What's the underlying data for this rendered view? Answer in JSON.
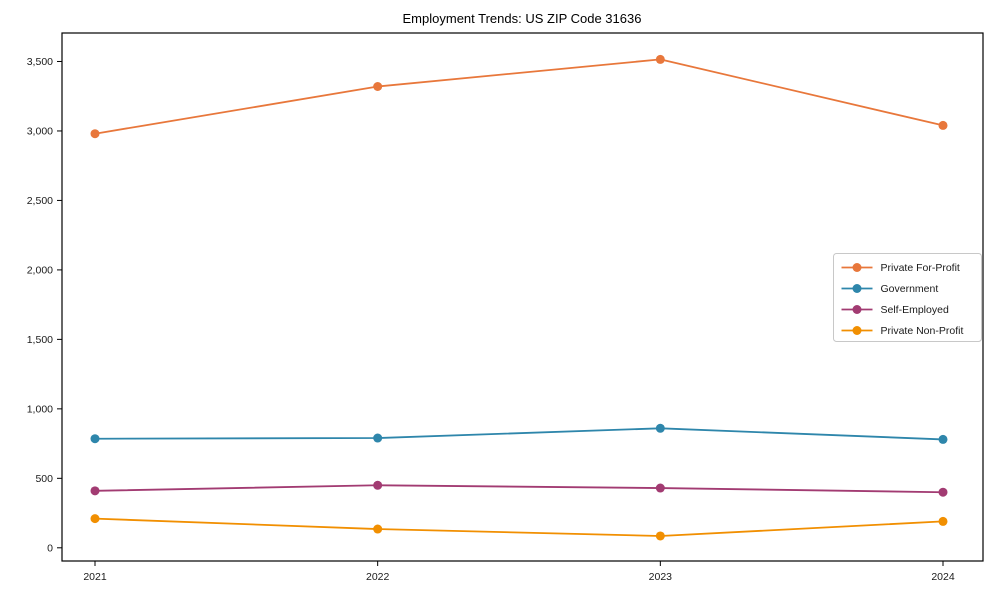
{
  "chart_data": {
    "type": "line",
    "title": "Employment Trends: US ZIP Code 31636",
    "categories": [
      "2021",
      "2022",
      "2023",
      "2024"
    ],
    "series": [
      {
        "name": "Private For-Profit",
        "color": "#E8773B",
        "values": [
          2980,
          3320,
          3515,
          3040
        ]
      },
      {
        "name": "Government",
        "color": "#2E86AB",
        "values": [
          785,
          790,
          860,
          780
        ]
      },
      {
        "name": "Self-Employed",
        "color": "#A23B72",
        "values": [
          410,
          450,
          430,
          400
        ]
      },
      {
        "name": "Private Non-Profit",
        "color": "#F18F01",
        "values": [
          210,
          135,
          85,
          190
        ]
      }
    ],
    "xlabel": "",
    "ylabel": "",
    "ylim": [
      -95,
      3705
    ],
    "yticks": [
      0,
      500,
      1000,
      1500,
      2000,
      2500,
      3000,
      3500
    ],
    "ytick_labels": [
      "0",
      "500",
      "1,000",
      "1,500",
      "2,000",
      "2,500",
      "3,000",
      "3,500"
    ],
    "grid": false,
    "marker": "circle",
    "legend": {
      "position": "center-right",
      "border_color": "#c8c8c8",
      "background": "#ffffff"
    }
  },
  "frame": {
    "background": "#ffffff",
    "axis_color": "#000000",
    "text_color": "#1a1a1a"
  }
}
